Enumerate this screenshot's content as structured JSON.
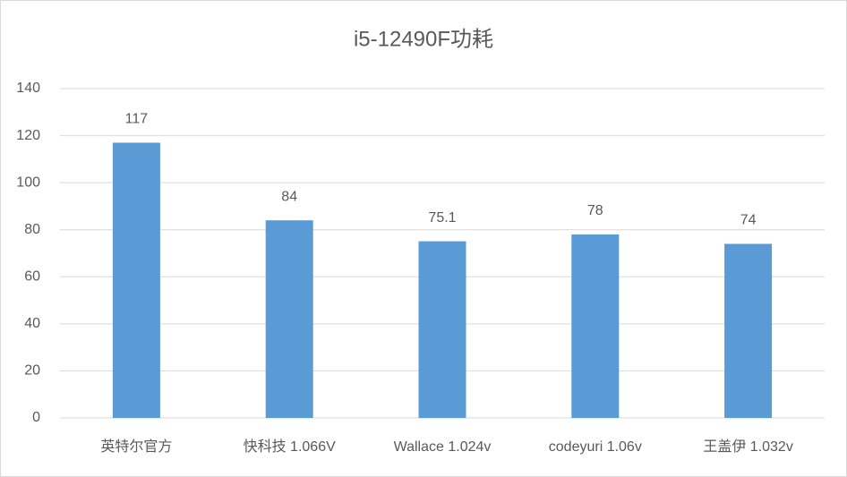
{
  "chart_data": {
    "type": "bar",
    "title": "i5-12490F功耗",
    "categories": [
      "英特尔官方",
      "快科技 1.066V",
      "Wallace 1.024v",
      "codeyuri 1.06v",
      "王盖伊 1.032v"
    ],
    "values": [
      117,
      84,
      75.1,
      78,
      74
    ],
    "color": "#5b9bd5",
    "ylim": [
      0,
      140
    ],
    "yticks": [
      0,
      20,
      40,
      60,
      80,
      100,
      120,
      140
    ],
    "grid": true
  }
}
